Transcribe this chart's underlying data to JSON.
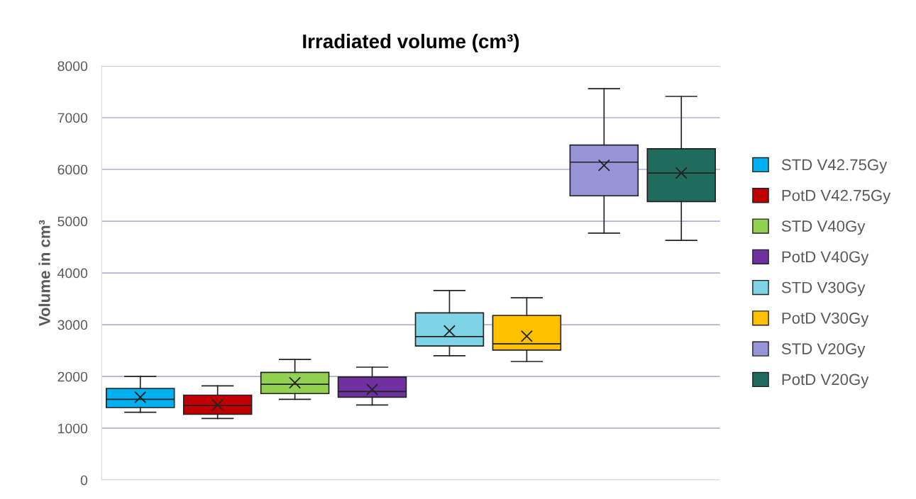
{
  "chart_data": {
    "type": "box",
    "title": "Irradiated volume (cm³)",
    "ylabel": "Volume in cm³",
    "categories": [
      null
    ],
    "ylim": [
      0,
      8000
    ],
    "yticks": [
      0,
      1000,
      2000,
      3000,
      4000,
      5000,
      6000,
      7000,
      8000
    ],
    "grid": "y",
    "legend": "right",
    "marker": "cross",
    "tick_labels": "y",
    "series": [
      {
        "name": "STD V42.75Gy",
        "color": "#00b0f0",
        "boxes": [
          {
            "low": 1310,
            "q1": 1400,
            "median": 1560,
            "q3": 1770,
            "high": 2000,
            "mean": 1600
          }
        ]
      },
      {
        "name": "PotD V42.75Gy",
        "color": "#c00000",
        "boxes": [
          {
            "low": 1190,
            "q1": 1270,
            "median": 1440,
            "q3": 1640,
            "high": 1820,
            "mean": 1450
          }
        ]
      },
      {
        "name": "STD V40Gy",
        "color": "#92d050",
        "boxes": [
          {
            "low": 1560,
            "q1": 1670,
            "median": 1850,
            "q3": 2080,
            "high": 2330,
            "mean": 1880
          }
        ]
      },
      {
        "name": "PotD V40Gy",
        "color": "#7030a0",
        "boxes": [
          {
            "low": 1450,
            "q1": 1600,
            "median": 1710,
            "q3": 1990,
            "high": 2180,
            "mean": 1750
          }
        ]
      },
      {
        "name": "STD V30Gy",
        "color": "#7fd3e6",
        "boxes": [
          {
            "low": 2400,
            "q1": 2590,
            "median": 2770,
            "q3": 3230,
            "high": 3660,
            "mean": 2880
          }
        ]
      },
      {
        "name": "PotD V30Gy",
        "color": "#ffc000",
        "boxes": [
          {
            "low": 2290,
            "q1": 2510,
            "median": 2630,
            "q3": 3180,
            "high": 3520,
            "mean": 2780
          }
        ]
      },
      {
        "name": "STD V20Gy",
        "color": "#9693d6",
        "boxes": [
          {
            "low": 4770,
            "q1": 5490,
            "median": 6140,
            "q3": 6470,
            "high": 7560,
            "mean": 6080
          }
        ]
      },
      {
        "name": "PotD V20Gy",
        "color": "#1f6b5e",
        "boxes": [
          {
            "low": 4630,
            "q1": 5380,
            "median": 5930,
            "q3": 6400,
            "high": 7410,
            "mean": 5930
          }
        ]
      }
    ]
  }
}
